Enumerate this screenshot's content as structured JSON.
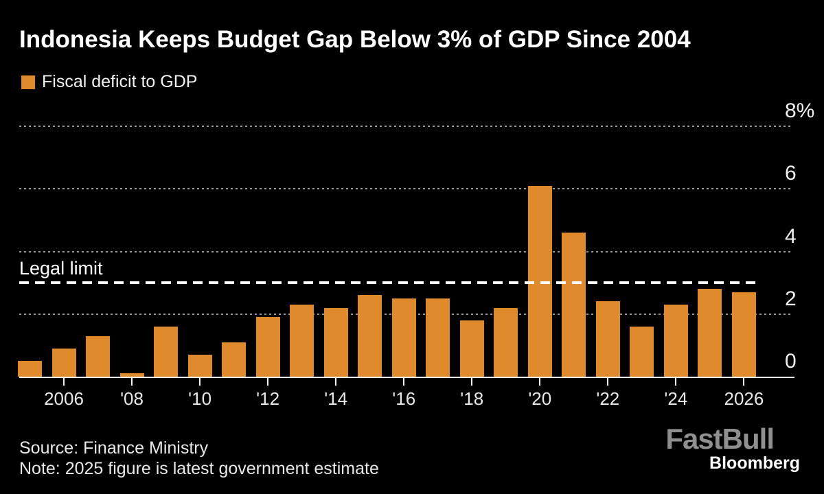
{
  "title": "Indonesia Keeps Budget Gap Below 3% of GDP Since 2004",
  "legend": {
    "label": "Fiscal deficit to GDP"
  },
  "reference_line": {
    "label": "Legal limit",
    "value": 3
  },
  "footer": {
    "source": "Source: Finance Ministry",
    "note": "Note: 2025 figure is latest government estimate"
  },
  "branding": {
    "fastbull": "FastBull",
    "bloomberg": "Bloomberg"
  },
  "colors": {
    "background": "#000000",
    "bar": "#E08A2E",
    "grid": "#9A9A9A",
    "axis": "#F2F2F2",
    "title_text": "#FFFFFF",
    "label_text": "#E8E8E8",
    "logo_gray": "#8F8F8F"
  },
  "chart_data": {
    "type": "bar",
    "title": "Indonesia Keeps Budget Gap Below 3% of GDP Since 2004",
    "series_name": "Fiscal deficit to GDP",
    "categories": [
      2005,
      2006,
      2007,
      2008,
      2009,
      2010,
      2011,
      2012,
      2013,
      2014,
      2015,
      2016,
      2017,
      2018,
      2019,
      2020,
      2021,
      2022,
      2023,
      2024,
      2025,
      2026
    ],
    "values": [
      0.5,
      0.9,
      1.3,
      0.1,
      1.6,
      0.7,
      1.1,
      1.9,
      2.3,
      2.2,
      2.6,
      2.5,
      2.5,
      1.8,
      2.2,
      6.1,
      4.6,
      2.4,
      1.6,
      2.3,
      2.8,
      2.7
    ],
    "unit": "% of GDP",
    "xlabel": "",
    "ylabel": "",
    "ylim": [
      0,
      8
    ],
    "y_ticks": [
      {
        "value": 8,
        "label": "8%"
      },
      {
        "value": 6,
        "label": "6"
      },
      {
        "value": 4,
        "label": "4"
      },
      {
        "value": 2,
        "label": "2"
      },
      {
        "value": 0,
        "label": "0"
      }
    ],
    "x_ticks": [
      {
        "year": 2006,
        "label": "2006"
      },
      {
        "year": 2008,
        "label": "'08"
      },
      {
        "year": 2010,
        "label": "'10"
      },
      {
        "year": 2012,
        "label": "'12"
      },
      {
        "year": 2014,
        "label": "'14"
      },
      {
        "year": 2016,
        "label": "'16"
      },
      {
        "year": 2018,
        "label": "'18"
      },
      {
        "year": 2020,
        "label": "'20"
      },
      {
        "year": 2022,
        "label": "'22"
      },
      {
        "year": 2024,
        "label": "'24"
      },
      {
        "year": 2026,
        "label": "2026"
      }
    ],
    "grid": "horizontal dotted",
    "legend_position": "top-left",
    "annotations": [
      {
        "type": "hline",
        "value": 3,
        "label": "Legal limit",
        "style": "white dashed"
      }
    ]
  }
}
